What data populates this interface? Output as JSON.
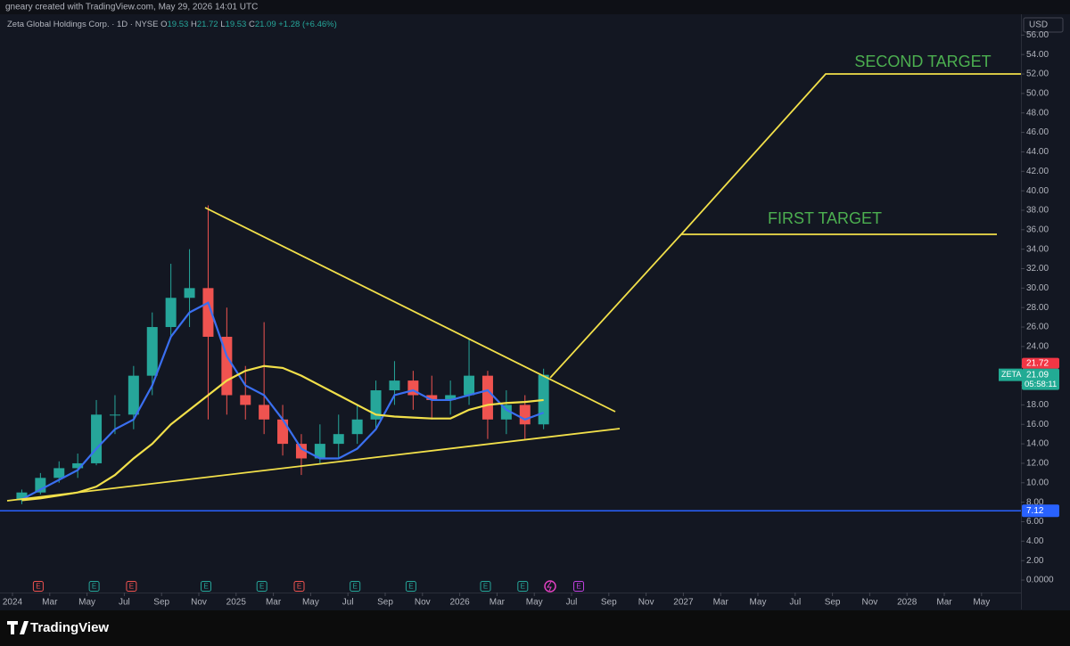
{
  "credit": "gneary created with TradingView.com, May 29, 2026 14:01 UTC",
  "brand": "TradingView",
  "chart_data": {
    "type": "candlestick",
    "title": "Zeta Global Holdings Corp. · 1D · NYSE",
    "quote": [
      {
        "label": "O",
        "value": 19.53
      },
      {
        "label": "H",
        "value": 21.72
      },
      {
        "label": "L",
        "value": 19.53
      },
      {
        "label": "C",
        "value": 21.09
      }
    ],
    "change": "+1.28",
    "change_pct": "(+6.46%)",
    "currency": "USD",
    "up_color": "#26a69a",
    "down_color": "#ef5350",
    "x": [
      "2024-01",
      "2024-02",
      "2024-03",
      "2024-04",
      "2024-05",
      "2024-06",
      "2024-07",
      "2024-08",
      "2024-09",
      "2024-10",
      "2024-11",
      "2024-12",
      "2025-01",
      "2025-02",
      "2025-03",
      "2025-04",
      "2025-05",
      "2025-06",
      "2025-07",
      "2025-08",
      "2025-09",
      "2025-10",
      "2025-11",
      "2025-12",
      "2026-01",
      "2026-02",
      "2026-03",
      "2026-04",
      "2026-05"
    ],
    "open": [
      8.2,
      9,
      10.5,
      11.5,
      12,
      17,
      17,
      21,
      26,
      29,
      30,
      25,
      19,
      18,
      16.5,
      14,
      12.5,
      14,
      15,
      16.5,
      19.5,
      20.5,
      19,
      18.5,
      19,
      21,
      16.5,
      18,
      16
    ],
    "high": [
      9.3,
      11,
      12.2,
      13,
      18.5,
      19,
      22,
      27.5,
      32.5,
      34,
      38.5,
      28,
      22,
      26.5,
      18,
      15,
      16,
      17,
      18,
      20.5,
      22.5,
      21.5,
      21,
      20.5,
      24.8,
      21.5,
      19.5,
      19,
      21.72
    ],
    "low": [
      7.8,
      8.8,
      10,
      10.5,
      11.8,
      15,
      15.5,
      19,
      25,
      26,
      16.5,
      17,
      16.5,
      15,
      12.8,
      10.8,
      12,
      12.5,
      14,
      15.5,
      18,
      17.5,
      16.5,
      17,
      18,
      14.5,
      15,
      14.5,
      15.5
    ],
    "close": [
      9,
      10.5,
      11.5,
      12,
      17,
      17,
      21,
      26,
      29,
      30,
      25,
      19,
      18,
      16.5,
      14,
      12.5,
      14,
      15,
      16.5,
      19.5,
      20.5,
      19,
      18.5,
      19,
      21,
      16.5,
      18,
      16,
      21.09
    ],
    "overlays": [
      {
        "color": "#3a6ff0",
        "values": [
          8.3,
          9.3,
          10.3,
          11.3,
          13.5,
          15.5,
          16.5,
          20,
          25,
          27.5,
          28.5,
          23,
          20,
          19,
          16.5,
          13.5,
          12.5,
          12.5,
          13.5,
          15.5,
          19,
          19.5,
          18.5,
          18.5,
          19,
          19.5,
          17.5,
          16.5,
          17.2
        ]
      },
      {
        "color": "#f2e04a",
        "values": [
          8.2,
          8.4,
          8.7,
          9,
          9.6,
          10.8,
          12.5,
          14,
          16,
          17.5,
          19,
          20.5,
          21.5,
          22,
          21.8,
          21,
          20,
          19,
          18,
          17,
          16.8,
          16.7,
          16.6,
          16.6,
          17.5,
          18,
          18.2,
          18.3,
          18.5
        ]
      }
    ],
    "level_line": {
      "value": 7.12,
      "color": "#2962ff"
    },
    "price_badges": [
      {
        "value": 21.72,
        "color": "#f23645"
      },
      {
        "value": 21.09,
        "color": "#22ab94",
        "symbol": "ZETA",
        "countdown": "05:58:11"
      }
    ],
    "annotations": [
      "SECOND TARGET",
      "FIRST TARGET"
    ],
    "events": [
      {
        "x": "2024-02",
        "label": "E",
        "color": "#ef5350"
      },
      {
        "x": "2024-05",
        "label": "E",
        "color": "#26a69a"
      },
      {
        "x": "2024-07",
        "label": "E",
        "color": "#ef5350"
      },
      {
        "x": "2024-11",
        "label": "E",
        "color": "#26a69a"
      },
      {
        "x": "2025-02",
        "label": "E",
        "color": "#26a69a"
      },
      {
        "x": "2025-04",
        "label": "E",
        "color": "#ef5350"
      },
      {
        "x": "2025-07",
        "label": "E",
        "color": "#26a69a"
      },
      {
        "x": "2025-10",
        "label": "E",
        "color": "#26a69a"
      },
      {
        "x": "2026-02",
        "label": "E",
        "color": "#26a69a"
      },
      {
        "x": "2026-04",
        "label": "E",
        "color": "#26a69a"
      },
      {
        "x": "2026-07",
        "label": "E",
        "color": "#c040e0"
      }
    ],
    "ylim": [
      -1.28,
      58.23
    ],
    "yticks": [
      {
        "value": 0,
        "label": "0.0000"
      },
      {
        "value": 2,
        "label": "2.00"
      },
      {
        "value": 4,
        "label": "4.00"
      },
      {
        "value": 6,
        "label": "6.00"
      },
      {
        "value": 8,
        "label": "8.00"
      },
      {
        "value": 10,
        "label": "10.00"
      },
      {
        "value": 12,
        "label": "12.00"
      },
      {
        "value": 14,
        "label": "14.00"
      },
      {
        "value": 16,
        "label": "16.00"
      },
      {
        "value": 18,
        "label": "18.00"
      },
      {
        "value": 20,
        "label": "20.00"
      },
      {
        "value": 22,
        "label": "22.00"
      },
      {
        "value": 24,
        "label": "24.00"
      },
      {
        "value": 26,
        "label": "26.00"
      },
      {
        "value": 28,
        "label": "28.00"
      },
      {
        "value": 30,
        "label": "30.00"
      },
      {
        "value": 32,
        "label": "32.00"
      },
      {
        "value": 34,
        "label": "34.00"
      },
      {
        "value": 36,
        "label": "36.00"
      },
      {
        "value": 38,
        "label": "38.00"
      },
      {
        "value": 40,
        "label": "40.00"
      },
      {
        "value": 42,
        "label": "42.00"
      },
      {
        "value": 44,
        "label": "44.00"
      },
      {
        "value": 46,
        "label": "46.00"
      },
      {
        "value": 48,
        "label": "48.00"
      },
      {
        "value": 50,
        "label": "50.00"
      },
      {
        "value": 52,
        "label": "52.00"
      },
      {
        "value": 54,
        "label": "54.00"
      },
      {
        "value": 56,
        "label": "56.00"
      }
    ],
    "xticks": [
      {
        "value": "2024-01",
        "label": "2024"
      },
      {
        "value": "2024-03",
        "label": "Mar"
      },
      {
        "value": "2024-05",
        "label": "May"
      },
      {
        "value": "2024-07",
        "label": "Jul"
      },
      {
        "value": "2024-09",
        "label": "Sep"
      },
      {
        "value": "2024-11",
        "label": "Nov"
      },
      {
        "value": "2025-01",
        "label": "2025"
      },
      {
        "value": "2025-03",
        "label": "Mar"
      },
      {
        "value": "2025-05",
        "label": "May"
      },
      {
        "value": "2025-07",
        "label": "Jul"
      },
      {
        "value": "2025-09",
        "label": "Sep"
      },
      {
        "value": "2025-11",
        "label": "Nov"
      },
      {
        "value": "2026-01",
        "label": "2026"
      },
      {
        "value": "2026-03",
        "label": "Mar"
      },
      {
        "value": "2026-05",
        "label": "May"
      },
      {
        "value": "2026-07",
        "label": "Jul"
      },
      {
        "value": "2026-09",
        "label": "Sep"
      },
      {
        "value": "2026-11",
        "label": "Nov"
      },
      {
        "value": "2027-01",
        "label": "2027"
      },
      {
        "value": "2027-03",
        "label": "Mar"
      },
      {
        "value": "2027-05",
        "label": "May"
      },
      {
        "value": "2027-07",
        "label": "Jul"
      },
      {
        "value": "2027-09",
        "label": "Sep"
      },
      {
        "value": "2027-11",
        "label": "Nov"
      },
      {
        "value": "2028-01",
        "label": "2028"
      },
      {
        "value": "2028-03",
        "label": "Mar"
      },
      {
        "value": "2028-05",
        "label": "May"
      }
    ]
  }
}
